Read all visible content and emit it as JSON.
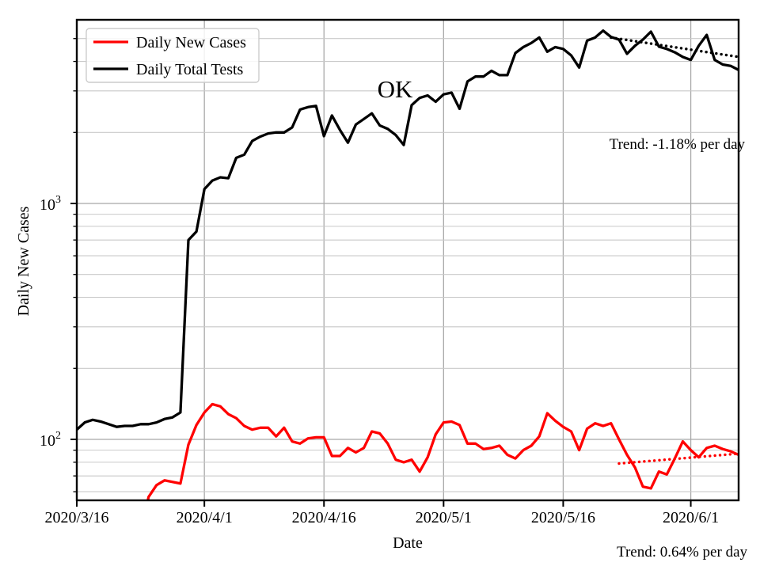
{
  "chart_data": {
    "type": "line",
    "title": "OK",
    "xlabel": "Date",
    "ylabel": "Daily New Cases",
    "yscale": "log",
    "ylim": [
      55,
      6000
    ],
    "start_date": "2020/3/16",
    "end_date": "2020/6/7",
    "x_range_days": [
      0,
      83
    ],
    "x_tick_days": [
      0,
      16,
      31,
      46,
      61,
      77
    ],
    "x_tick_labels": [
      "2020/3/16",
      "2020/4/1",
      "2020/4/16",
      "2020/5/1",
      "2020/5/16",
      "2020/6/1"
    ],
    "y_tick_values": [
      100,
      1000
    ],
    "y_tick_labels": [
      {
        "base": "10",
        "exp": "2"
      },
      {
        "base": "10",
        "exp": "3"
      }
    ],
    "grid": true,
    "legend_position": "upper left",
    "series": [
      {
        "name": "Daily New Cases",
        "color": "#ff0000",
        "values": [
          null,
          null,
          null,
          null,
          null,
          null,
          null,
          null,
          40,
          57,
          64,
          67,
          66,
          65,
          95,
          115,
          130,
          141,
          138,
          128,
          123,
          114,
          110,
          112,
          112,
          103,
          112,
          98,
          96,
          101,
          102,
          102,
          85,
          85,
          92,
          88,
          92,
          108,
          106,
          96,
          82,
          80,
          82,
          73,
          84,
          105,
          118,
          119,
          115,
          96,
          96,
          91,
          92,
          94,
          86,
          83,
          90,
          94,
          103,
          129,
          120,
          113,
          108,
          90,
          111,
          117,
          114,
          117,
          100,
          86,
          76,
          63,
          62,
          73,
          71,
          83,
          98,
          90,
          84,
          92,
          94,
          91,
          89,
          86
        ]
      },
      {
        "name": "Daily Total Tests",
        "color": "#000000",
        "values": [
          110,
          118,
          121,
          119,
          116,
          113,
          114,
          114,
          116,
          116,
          118,
          122,
          124,
          130,
          700,
          760,
          1150,
          1250,
          1290,
          1280,
          1560,
          1610,
          1840,
          1920,
          1980,
          2000,
          2000,
          2100,
          2500,
          2560,
          2590,
          1930,
          2360,
          2050,
          1810,
          2160,
          2280,
          2410,
          2140,
          2070,
          1950,
          1770,
          2610,
          2800,
          2870,
          2700,
          2900,
          2950,
          2520,
          3290,
          3450,
          3450,
          3650,
          3500,
          3500,
          4340,
          4600,
          4790,
          5050,
          4400,
          4600,
          4520,
          4240,
          3770,
          4900,
          5050,
          5400,
          5080,
          4950,
          4310,
          4660,
          4950,
          5350,
          4620,
          4520,
          4370,
          4180,
          4060,
          4660,
          5180,
          4060,
          3880,
          3830,
          3680
        ]
      }
    ],
    "trend_lines": [
      {
        "name": "tests-trend",
        "label": "Trend: -1.18% per day",
        "rate_per_day_pct": -1.18,
        "color": "#000000",
        "style": "dotted",
        "start_day": 67,
        "end_day": 83,
        "start_value": 5050,
        "end_value": 4180
      },
      {
        "name": "cases-trend",
        "label": "Trend: 0.64% per day",
        "rate_per_day_pct": 0.64,
        "color": "#ff0000",
        "style": "dotted",
        "start_day": 68,
        "end_day": 83,
        "start_value": 79,
        "end_value": 87
      }
    ],
    "annotations": [
      {
        "id": "title",
        "text": "OK",
        "position": "upper-center-inside"
      },
      {
        "id": "tests-trend-label",
        "text": "Trend: -1.18% per day",
        "position": "upper-right-inside"
      },
      {
        "id": "cases-trend-label",
        "text": "Trend: 0.64% per day",
        "position": "lower-right-below-axes"
      }
    ],
    "legend_entries": [
      "Daily New Cases",
      "Daily Total Tests"
    ]
  },
  "colors": {
    "accent_red": "#ff0000",
    "line_black": "#000000",
    "grid_major": "#a8a8a8",
    "grid_minor": "#c9c9c9",
    "legend_border": "#cccccc",
    "background": "#ffffff"
  }
}
